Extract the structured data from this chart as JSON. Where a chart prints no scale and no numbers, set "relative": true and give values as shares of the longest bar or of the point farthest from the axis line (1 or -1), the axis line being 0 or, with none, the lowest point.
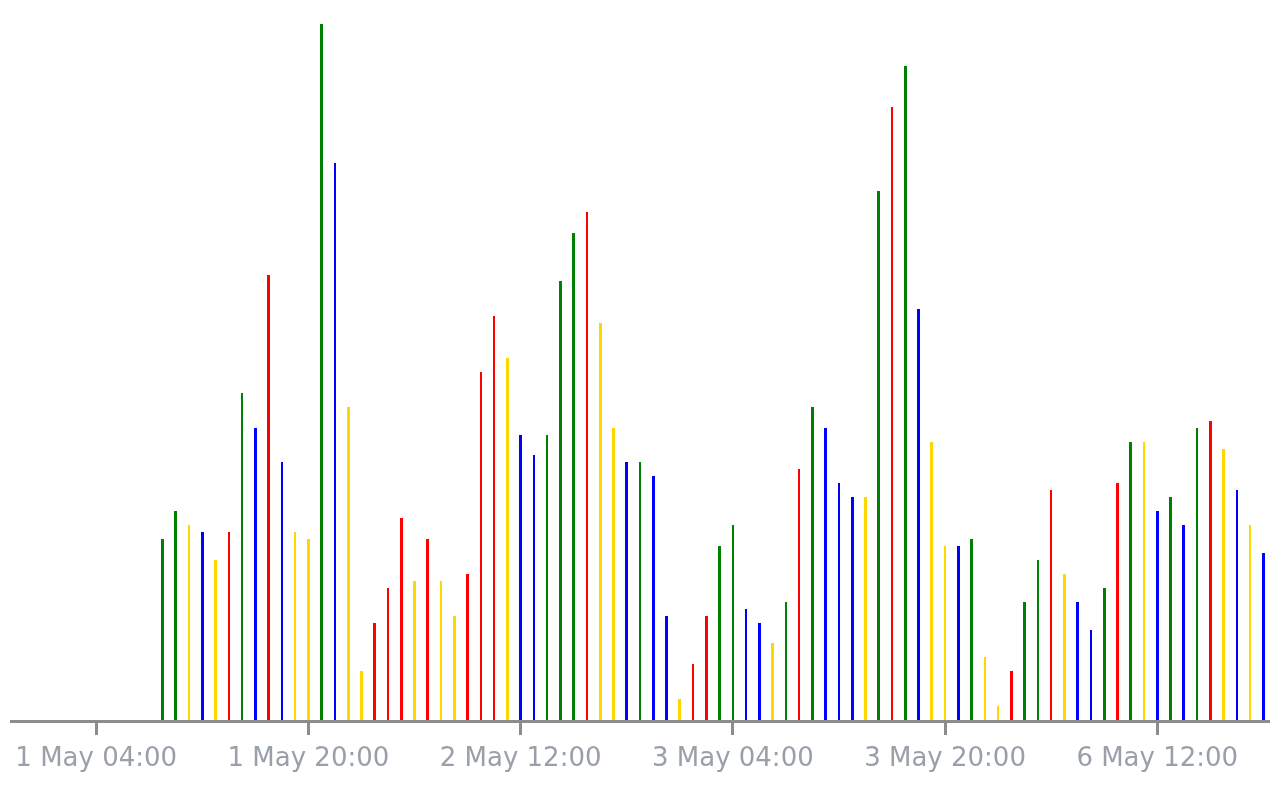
{
  "chart_data": {
    "type": "bar",
    "relative": true,
    "categories": [
      "1 May 04:00",
      null,
      null,
      null,
      null,
      null,
      null,
      null,
      null,
      null,
      null,
      null,
      null,
      null,
      null,
      null,
      "1 May 20:00",
      null,
      null,
      null,
      null,
      null,
      null,
      null,
      null,
      null,
      null,
      null,
      null,
      null,
      null,
      null,
      "2 May 12:00",
      null,
      null,
      null,
      null,
      null,
      null,
      null,
      null,
      null,
      null,
      null,
      null,
      null,
      null,
      null,
      "3 May 04:00",
      null,
      null,
      null,
      null,
      null,
      null,
      null,
      null,
      null,
      null,
      null,
      null,
      null,
      null,
      null,
      "3 May 20:00",
      null,
      null,
      null,
      null,
      null,
      null,
      null,
      null,
      null,
      null,
      null,
      null,
      null,
      null,
      null,
      "6 May 12:00",
      null,
      null,
      null,
      null,
      null,
      null,
      null,
      null
    ],
    "values": [
      null,
      null,
      null,
      null,
      null,
      0.26,
      0.3,
      0.28,
      0.27,
      0.23,
      0.27,
      0.47,
      0.42,
      0.64,
      0.37,
      0.27,
      0.26,
      1,
      0.8,
      0.45,
      0.07,
      0.14,
      0.19,
      0.29,
      0.2,
      0.26,
      0.2,
      0.15,
      0.21,
      0.5,
      0.58,
      0.52,
      0.41,
      0.38,
      0.41,
      0.63,
      0.7,
      0.73,
      0.57,
      0.42,
      0.37,
      0.37,
      0.35,
      0.15,
      0.03,
      0.08,
      0.15,
      0.25,
      0.28,
      0.16,
      0.14,
      0.11,
      0.17,
      0.36,
      0.45,
      0.42,
      0.34,
      0.32,
      0.32,
      0.76,
      0.88,
      0.94,
      0.59,
      0.4,
      0.25,
      0.25,
      0.26,
      0.09,
      0.02,
      0.07,
      0.17,
      0.23,
      0.33,
      0.21,
      0.17,
      0.13,
      0.19,
      0.34,
      0.4,
      0.4,
      0.3,
      0.32,
      0.28,
      0.42,
      0.43,
      0.39,
      0.33,
      0.28,
      0.24
    ],
    "colors": [
      "#008000",
      "#008000",
      "#008000",
      "#008000",
      "#008000",
      "#008000",
      "#008000",
      "#ffd700",
      "#0000ff",
      "#ffd700",
      "#ff0000",
      "#008000",
      "#0000ff",
      "#ff0000",
      "#0000ff",
      "#ffd700",
      "#ffd700",
      "#008000",
      "#0000ff",
      "#ffd700",
      "#ffd700",
      "#ff0000",
      "#ff0000",
      "#ff0000",
      "#ffd700",
      "#ff0000",
      "#ffd700",
      "#ffd700",
      "#ff0000",
      "#ff0000",
      "#ff0000",
      "#ffd700",
      "#0000ff",
      "#0000ff",
      "#008000",
      "#008000",
      "#008000",
      "#ff0000",
      "#ffd700",
      "#ffd700",
      "#0000ff",
      "#008000",
      "#0000ff",
      "#0000ff",
      "#ffd700",
      "#ff0000",
      "#ff0000",
      "#008000",
      "#008000",
      "#0000ff",
      "#0000ff",
      "#ffd700",
      "#008000",
      "#ff0000",
      "#008000",
      "#0000ff",
      "#0000ff",
      "#0000ff",
      "#ffd700",
      "#008000",
      "#ff0000",
      "#008000",
      "#0000ff",
      "#ffd700",
      "#ffd700",
      "#0000ff",
      "#008000",
      "#ffd700",
      "#ffd700",
      "#ff0000",
      "#008000",
      "#008000",
      "#ff0000",
      "#ffd700",
      "#0000ff",
      "#0000ff",
      "#008000",
      "#ff0000",
      "#008000",
      "#ffd700",
      "#0000ff",
      "#008000",
      "#0000ff",
      "#008000",
      "#ff0000",
      "#ffd700",
      "#0000ff",
      "#ffd700",
      "#0000ff"
    ]
  }
}
